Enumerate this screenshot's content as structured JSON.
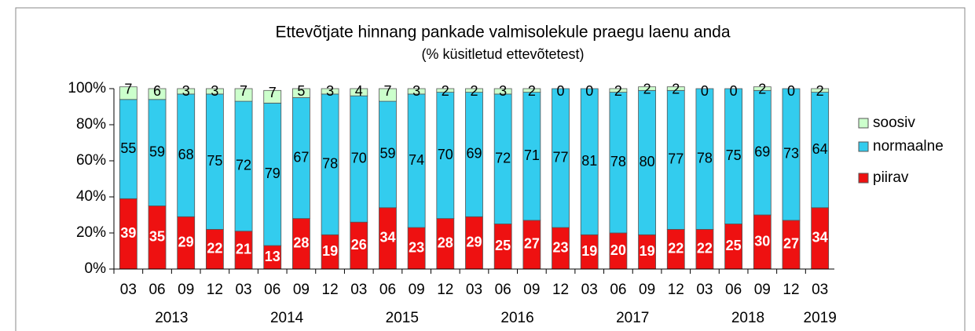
{
  "chart_data": {
    "type": "stacked_bar",
    "title": "Ettevõtjate hinnang pankade valmisolekule praegu laenu anda",
    "subtitle": "(% küsitletud ettevõtetest)",
    "categories": [
      "03",
      "06",
      "09",
      "12",
      "03",
      "06",
      "09",
      "12",
      "03",
      "06",
      "09",
      "12",
      "03",
      "06",
      "09",
      "12",
      "03",
      "06",
      "09",
      "12",
      "03",
      "06",
      "09",
      "12",
      "03"
    ],
    "years": [
      "2013",
      "2014",
      "2015",
      "2016",
      "2017",
      "2018",
      "2019"
    ],
    "series": [
      {
        "name": "piirav",
        "color": "#ee1111",
        "values": [
          39,
          35,
          29,
          22,
          21,
          13,
          28,
          19,
          26,
          34,
          23,
          28,
          29,
          25,
          27,
          23,
          19,
          20,
          19,
          22,
          22,
          25,
          30,
          27,
          34
        ]
      },
      {
        "name": "normaalne",
        "color": "#33ccee",
        "values": [
          55,
          59,
          68,
          75,
          72,
          79,
          67,
          78,
          70,
          59,
          74,
          70,
          69,
          72,
          71,
          77,
          81,
          78,
          80,
          77,
          78,
          75,
          69,
          73,
          64
        ]
      },
      {
        "name": "soosiv",
        "color": "#ccffcc",
        "values": [
          7,
          6,
          3,
          3,
          7,
          7,
          5,
          3,
          4,
          7,
          3,
          2,
          2,
          3,
          2,
          0,
          0,
          2,
          2,
          2,
          0,
          0,
          2,
          0,
          2
        ]
      }
    ],
    "ylim": [
      0,
      100
    ],
    "yticks": [
      {
        "value": 0,
        "label": "0%"
      },
      {
        "value": 20,
        "label": "20%"
      },
      {
        "value": 40,
        "label": "40%"
      },
      {
        "value": 60,
        "label": "60%"
      },
      {
        "value": 80,
        "label": "80%"
      },
      {
        "value": 100,
        "label": "100%"
      }
    ],
    "legend": "right"
  }
}
